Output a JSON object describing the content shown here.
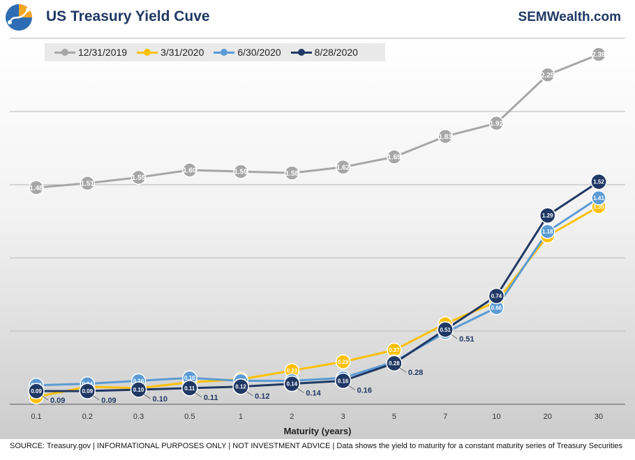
{
  "header": {
    "title": "US Treasury Yield Cuve",
    "brand": "SEMWealth.com"
  },
  "footer": {
    "source": "SOURCE: Treasury.gov | INFORMATIONAL PURPOSES ONLY | NOT INVESTMENT ADVICE | Data shows the yield to maturity for a constant maturity series of Treasury Securities"
  },
  "logo": {
    "icon": "globe-logo-icon"
  },
  "chart_data": {
    "type": "line",
    "title": "US Treasury Yield Cuve",
    "xlabel": "Maturity (years)",
    "ylabel": "",
    "categories": [
      "0.1",
      "0.2",
      "0.3",
      "0.5",
      "1",
      "2",
      "3",
      "5",
      "7",
      "10",
      "20",
      "30"
    ],
    "ylim": [
      0,
      2.5
    ],
    "grid": true,
    "legend": "top-left",
    "series": [
      {
        "name": "12/31/2019",
        "color": "#a6a6a6",
        "values": [
          1.48,
          1.51,
          1.55,
          1.6,
          1.59,
          1.58,
          1.62,
          1.69,
          1.83,
          1.92,
          2.25,
          2.39
        ]
      },
      {
        "name": "3/31/2020",
        "color": "#ffc000",
        "values": [
          0.05,
          0.12,
          0.11,
          0.15,
          0.17,
          0.23,
          0.29,
          0.37,
          0.55,
          0.7,
          1.15,
          1.35
        ]
      },
      {
        "name": "6/30/2020",
        "color": "#5b9bd5",
        "values": [
          0.13,
          0.14,
          0.16,
          0.18,
          0.16,
          0.16,
          0.18,
          0.29,
          0.49,
          0.66,
          1.18,
          1.41
        ]
      },
      {
        "name": "8/28/2020",
        "color": "#1f3864",
        "values": [
          0.09,
          0.09,
          0.1,
          0.11,
          0.12,
          0.14,
          0.16,
          0.28,
          0.51,
          0.74,
          1.29,
          1.52
        ]
      }
    ]
  }
}
